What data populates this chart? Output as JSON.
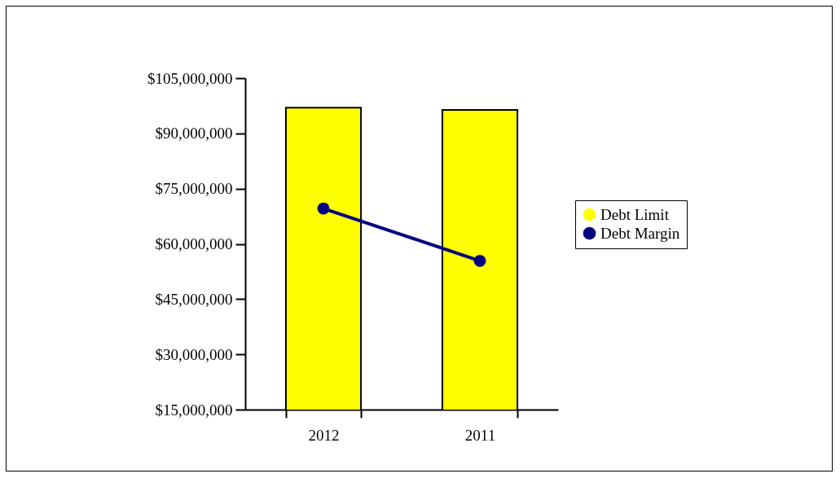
{
  "chart_data": {
    "type": "bar",
    "categories": [
      "2012",
      "2011"
    ],
    "series": [
      {
        "name": "Debt Limit",
        "color": "#ffff00",
        "values": [
          97000000,
          96400000
        ]
      },
      {
        "name": "Debt Margin",
        "type": "line",
        "color": "#000080",
        "values": [
          69600000,
          55400000
        ]
      }
    ],
    "ylim": [
      15000000,
      105000000
    ],
    "yticks": [
      {
        "value": 15000000,
        "label": "$15,000,000"
      },
      {
        "value": 30000000,
        "label": "$30,000,000"
      },
      {
        "value": 45000000,
        "label": "$45,000,000"
      },
      {
        "value": 60000000,
        "label": "$60,000,000"
      },
      {
        "value": 75000000,
        "label": "$75,000,000"
      },
      {
        "value": 90000000,
        "label": "$90,000,000"
      },
      {
        "value": 105000000,
        "label": "$105,000,000"
      }
    ],
    "legend": "right",
    "marker": "circle",
    "grid": false
  }
}
